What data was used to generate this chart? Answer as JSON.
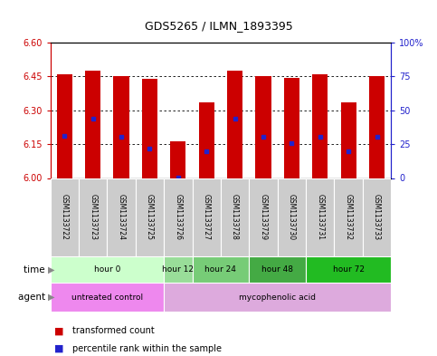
{
  "title": "GDS5265 / ILMN_1893395",
  "samples": [
    "GSM1133722",
    "GSM1133723",
    "GSM1133724",
    "GSM1133725",
    "GSM1133726",
    "GSM1133727",
    "GSM1133728",
    "GSM1133729",
    "GSM1133730",
    "GSM1133731",
    "GSM1133732",
    "GSM1133733"
  ],
  "bar_values": [
    6.462,
    6.475,
    6.452,
    6.438,
    6.162,
    6.335,
    6.475,
    6.452,
    6.443,
    6.462,
    6.335,
    6.452
  ],
  "blue_values": [
    6.185,
    6.265,
    6.182,
    6.13,
    6.001,
    6.12,
    6.265,
    6.182,
    6.155,
    6.182,
    6.12,
    6.182
  ],
  "bar_bottom": 6.0,
  "ylim": [
    6.0,
    6.6
  ],
  "yticks": [
    6.0,
    6.15,
    6.3,
    6.45,
    6.6
  ],
  "right_yticks": [
    0,
    25,
    50,
    75,
    100
  ],
  "bar_color": "#cc0000",
  "blue_color": "#2222cc",
  "left_tick_color": "#cc0000",
  "right_tick_color": "#2222cc",
  "time_groups": [
    {
      "label": "hour 0",
      "start": 0,
      "end": 4,
      "color": "#ccffcc"
    },
    {
      "label": "hour 12",
      "start": 4,
      "end": 5,
      "color": "#99dd99"
    },
    {
      "label": "hour 24",
      "start": 5,
      "end": 7,
      "color": "#77cc77"
    },
    {
      "label": "hour 48",
      "start": 7,
      "end": 9,
      "color": "#44aa44"
    },
    {
      "label": "hour 72",
      "start": 9,
      "end": 12,
      "color": "#22bb22"
    }
  ],
  "agent_groups": [
    {
      "label": "untreated control",
      "start": 0,
      "end": 4,
      "color": "#ee88ee"
    },
    {
      "label": "mycophenolic acid",
      "start": 4,
      "end": 12,
      "color": "#ddaadd"
    }
  ],
  "legend_red_label": "transformed count",
  "legend_blue_label": "percentile rank within the sample"
}
